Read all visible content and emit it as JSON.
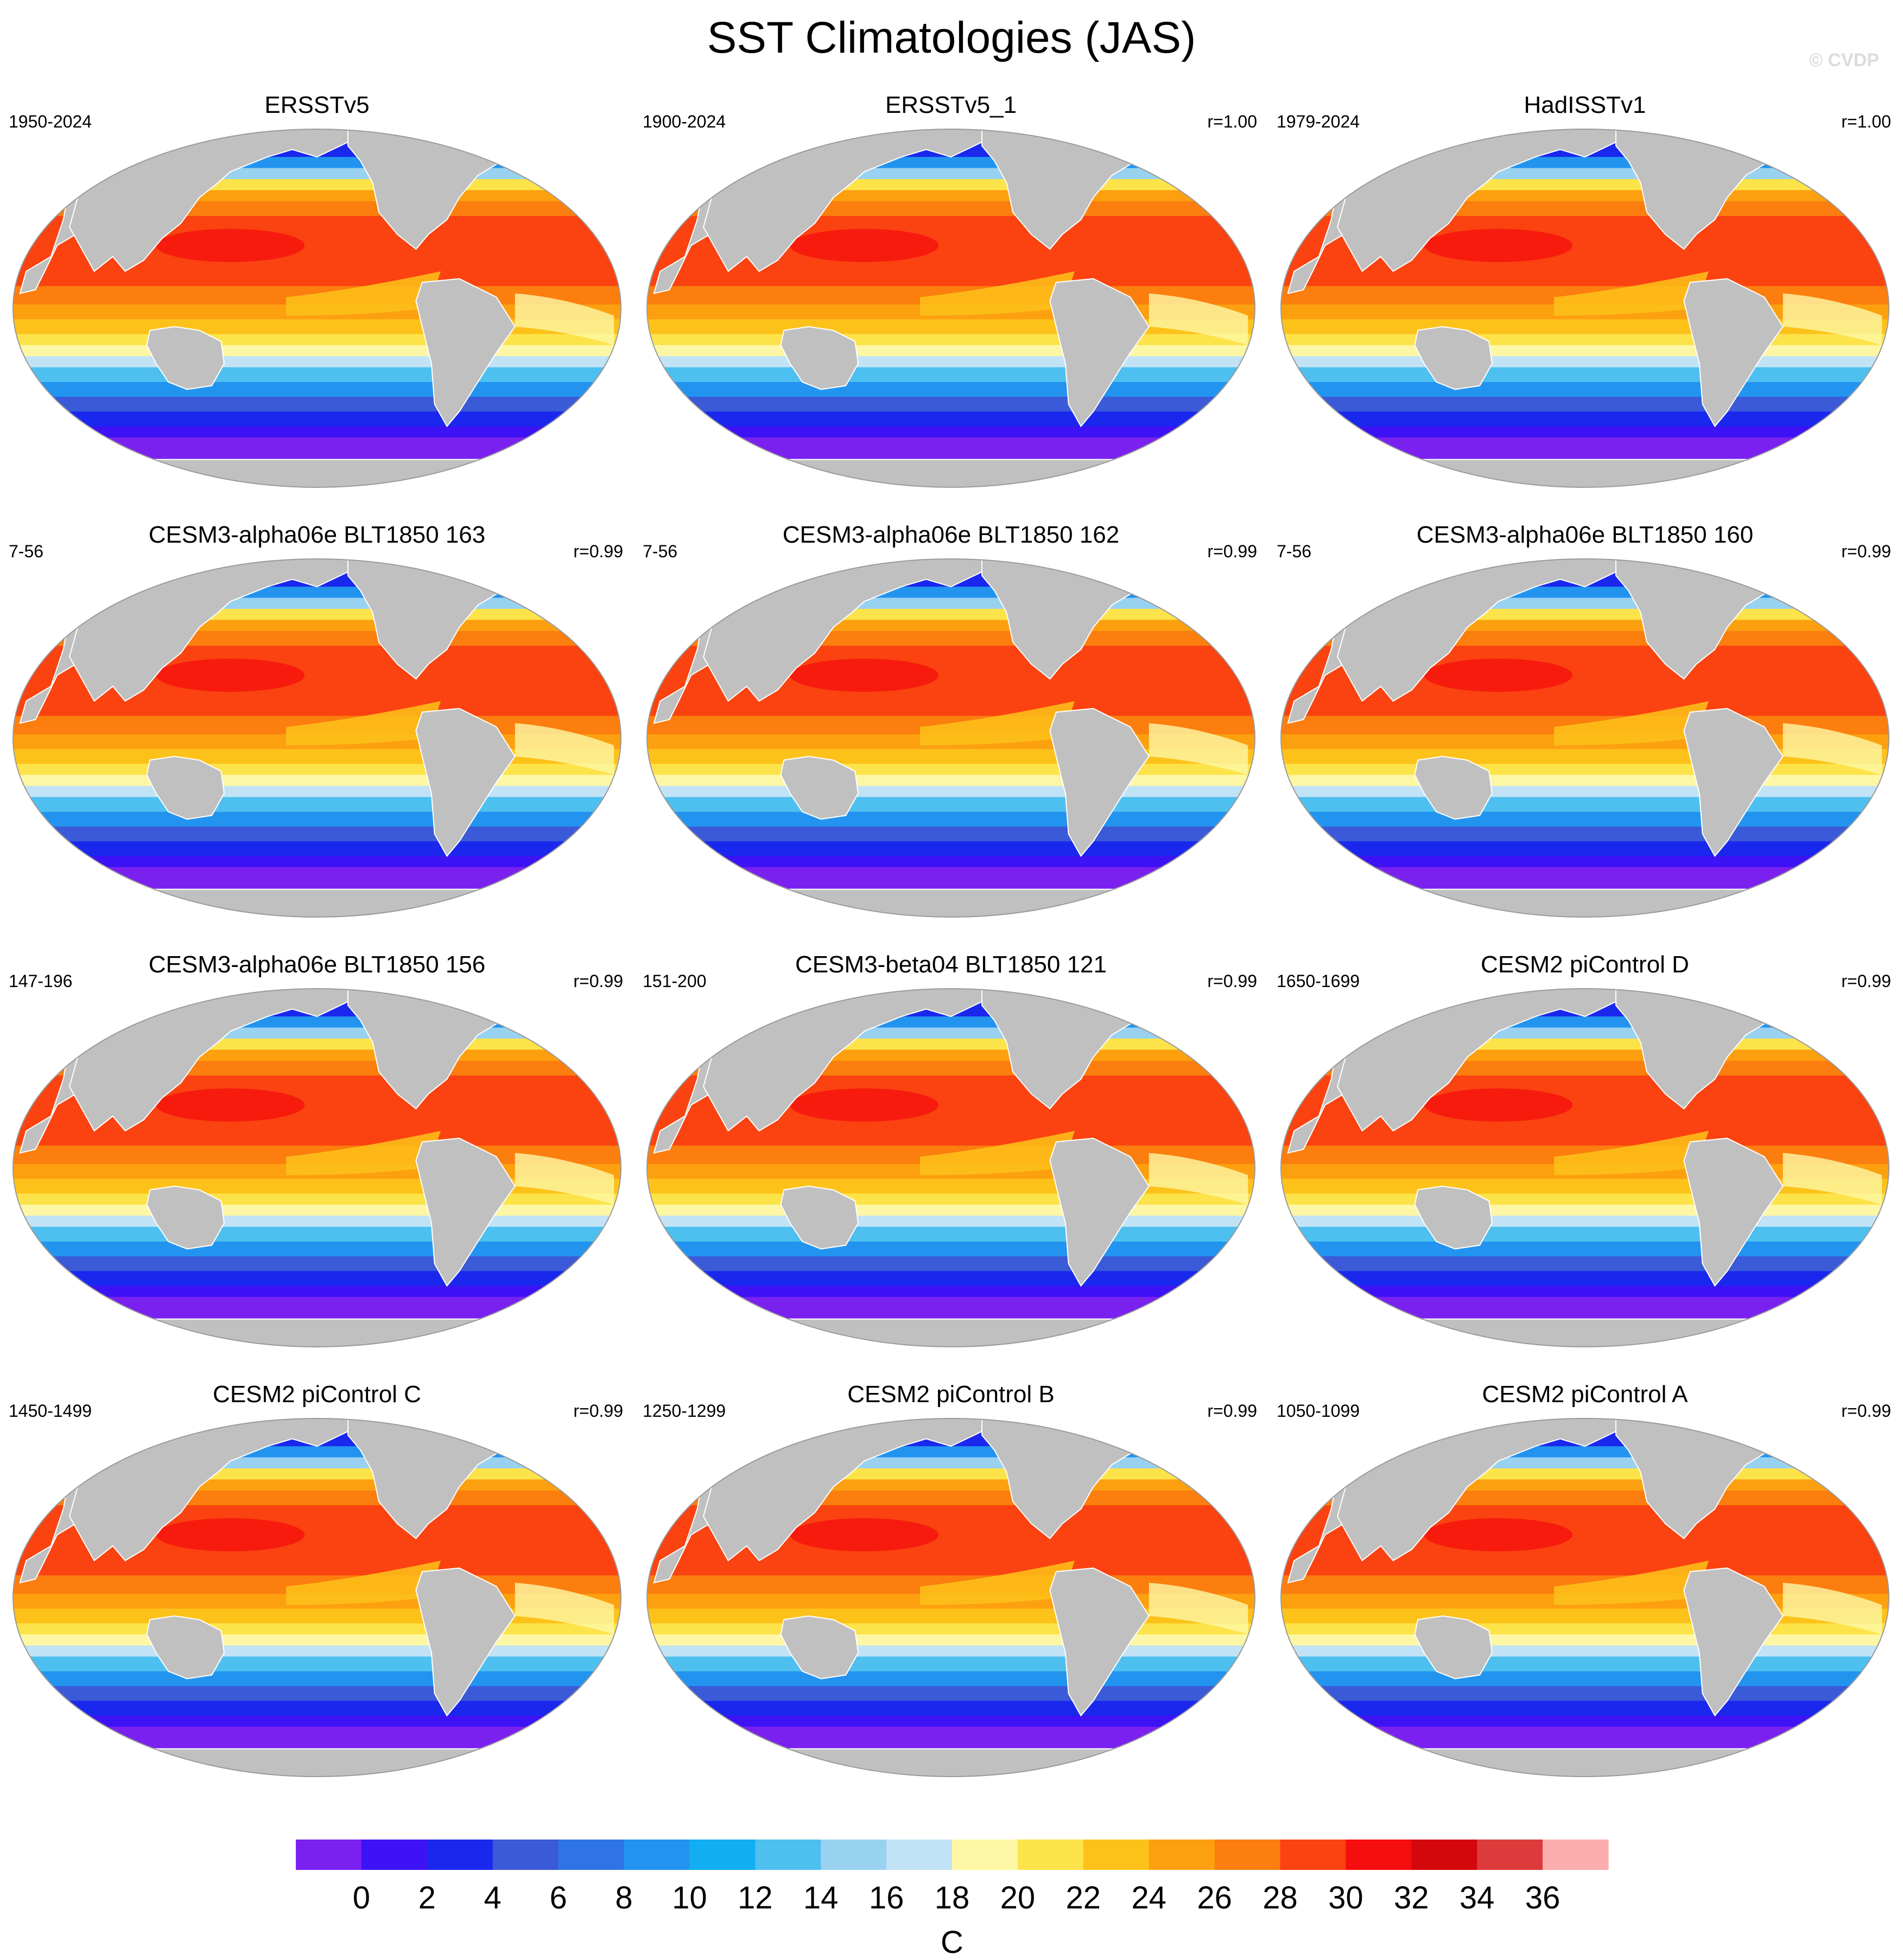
{
  "title": "SST Climatologies (JAS)",
  "watermark": "© CVDP",
  "panels": [
    {
      "title": "ERSSTv5",
      "period": "1950-2024",
      "corr": ""
    },
    {
      "title": "ERSSTv5_1",
      "period": "1900-2024",
      "corr": "r=1.00"
    },
    {
      "title": "HadISSTv1",
      "period": "1979-2024",
      "corr": "r=1.00"
    },
    {
      "title": "CESM3-alpha06e BLT1850 163",
      "period": "7-56",
      "corr": "r=0.99"
    },
    {
      "title": "CESM3-alpha06e BLT1850 162",
      "period": "7-56",
      "corr": "r=0.99"
    },
    {
      "title": "CESM3-alpha06e BLT1850 160",
      "period": "7-56",
      "corr": "r=0.99"
    },
    {
      "title": "CESM3-alpha06e BLT1850 156",
      "period": "147-196",
      "corr": "r=0.99"
    },
    {
      "title": "CESM3-beta04 BLT1850 121",
      "period": "151-200",
      "corr": "r=0.99"
    },
    {
      "title": "CESM2 piControl D",
      "period": "1650-1699",
      "corr": "r=0.99"
    },
    {
      "title": "CESM2 piControl C",
      "period": "1450-1499",
      "corr": "r=0.99"
    },
    {
      "title": "CESM2 piControl B",
      "period": "1250-1299",
      "corr": "r=0.99"
    },
    {
      "title": "CESM2 piControl A",
      "period": "1050-1099",
      "corr": "r=0.99"
    }
  ],
  "colorbar": {
    "unit": "C",
    "labels": [
      "0",
      "2",
      "4",
      "6",
      "8",
      "10",
      "12",
      "14",
      "16",
      "18",
      "20",
      "22",
      "24",
      "26",
      "28",
      "30",
      "32",
      "34",
      "36"
    ],
    "colors": [
      "#7a21f0",
      "#3d12f5",
      "#1a28ee",
      "#3b5ad8",
      "#2f74e6",
      "#2294f0",
      "#12aef2",
      "#4ec0f0",
      "#98d2f0",
      "#c2e3f6",
      "#fdf7a5",
      "#fde34a",
      "#fdc21a",
      "#fca010",
      "#fb7e0e",
      "#fa4310",
      "#f60d0d",
      "#d3070c",
      "#dd3b3b",
      "#fcaeae"
    ]
  },
  "chart_data": {
    "type": "map-contour",
    "variable": "Sea surface temperature climatology, July-August-September",
    "units": "C",
    "contour_levels": [
      0,
      2,
      4,
      6,
      8,
      10,
      12,
      14,
      16,
      18,
      20,
      22,
      24,
      26,
      28,
      30,
      32,
      34,
      36
    ],
    "colors": {
      "land": "#c0c0c0",
      "map_border": "#9a9a9a"
    }
  }
}
